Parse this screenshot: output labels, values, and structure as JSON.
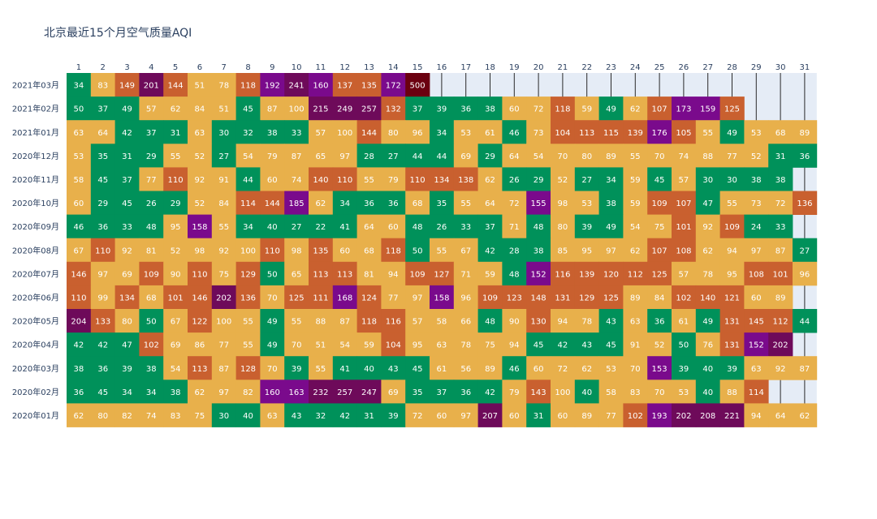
{
  "chart_data": {
    "type": "heatmap",
    "title": "北京最近15个月空气质量AQI",
    "x_categories": [
      "1",
      "2",
      "3",
      "4",
      "5",
      "6",
      "7",
      "8",
      "9",
      "10",
      "11",
      "12",
      "13",
      "14",
      "15",
      "16",
      "17",
      "18",
      "19",
      "20",
      "21",
      "22",
      "23",
      "24",
      "25",
      "26",
      "27",
      "28",
      "29",
      "30",
      "31"
    ],
    "y_categories": [
      "2021年03月",
      "2021年02月",
      "2021年01月",
      "2020年12月",
      "2020年11月",
      "2020年10月",
      "2020年09月",
      "2020年08月",
      "2020年07月",
      "2020年06月",
      "2020年05月",
      "2020年04月",
      "2020年03月",
      "2020年02月",
      "2020年01月"
    ],
    "values": [
      [
        34,
        83,
        149,
        201,
        144,
        51,
        78,
        118,
        192,
        241,
        160,
        137,
        135,
        172,
        500,
        null,
        null,
        null,
        null,
        null,
        null,
        null,
        null,
        null,
        null,
        null,
        null,
        null,
        null,
        null,
        null
      ],
      [
        50,
        37,
        49,
        57,
        62,
        84,
        51,
        45,
        87,
        100,
        215,
        249,
        257,
        132,
        37,
        39,
        36,
        38,
        60,
        72,
        118,
        59,
        49,
        62,
        107,
        173,
        159,
        125,
        null,
        null,
        null
      ],
      [
        63,
        64,
        42,
        37,
        31,
        63,
        30,
        32,
        38,
        33,
        57,
        100,
        144,
        80,
        96,
        34,
        53,
        61,
        46,
        73,
        104,
        113,
        115,
        139,
        176,
        105,
        55,
        49,
        53,
        68,
        89
      ],
      [
        53,
        35,
        31,
        29,
        55,
        52,
        27,
        54,
        79,
        87,
        65,
        97,
        28,
        27,
        44,
        44,
        69,
        29,
        64,
        54,
        70,
        80,
        89,
        55,
        70,
        74,
        88,
        77,
        52,
        31,
        36
      ],
      [
        58,
        45,
        37,
        77,
        110,
        92,
        91,
        44,
        60,
        74,
        140,
        110,
        55,
        79,
        110,
        134,
        138,
        62,
        26,
        29,
        52,
        27,
        34,
        59,
        45,
        57,
        30,
        30,
        38,
        38,
        null
      ],
      [
        60,
        29,
        45,
        26,
        29,
        52,
        84,
        114,
        144,
        185,
        62,
        34,
        36,
        36,
        68,
        35,
        55,
        64,
        72,
        155,
        98,
        53,
        38,
        59,
        109,
        107,
        47,
        55,
        73,
        72,
        136
      ],
      [
        46,
        36,
        33,
        48,
        95,
        158,
        55,
        34,
        40,
        27,
        22,
        41,
        64,
        60,
        48,
        26,
        33,
        37,
        71,
        48,
        80,
        39,
        49,
        54,
        75,
        101,
        92,
        109,
        24,
        33,
        null
      ],
      [
        67,
        110,
        92,
        81,
        52,
        98,
        92,
        100,
        110,
        98,
        135,
        60,
        68,
        118,
        50,
        55,
        67,
        42,
        28,
        38,
        85,
        95,
        97,
        62,
        107,
        108,
        62,
        94,
        97,
        87,
        27
      ],
      [
        146,
        97,
        69,
        109,
        90,
        110,
        75,
        129,
        50,
        65,
        113,
        113,
        81,
        94,
        109,
        127,
        71,
        59,
        48,
        152,
        116,
        139,
        120,
        112,
        125,
        57,
        78,
        95,
        108,
        101,
        96
      ],
      [
        110,
        99,
        134,
        68,
        101,
        146,
        202,
        136,
        70,
        125,
        111,
        168,
        124,
        77,
        97,
        158,
        96,
        109,
        123,
        148,
        131,
        129,
        125,
        89,
        84,
        102,
        140,
        121,
        60,
        89,
        null
      ],
      [
        204,
        133,
        80,
        50,
        67,
        122,
        100,
        55,
        49,
        55,
        88,
        87,
        118,
        116,
        57,
        58,
        66,
        48,
        90,
        130,
        94,
        78,
        43,
        63,
        36,
        61,
        49,
        131,
        145,
        112,
        44
      ],
      [
        42,
        42,
        47,
        102,
        69,
        86,
        77,
        55,
        49,
        70,
        51,
        54,
        59,
        104,
        95,
        63,
        78,
        75,
        94,
        45,
        42,
        43,
        45,
        91,
        52,
        50,
        76,
        131,
        152,
        202,
        null
      ],
      [
        38,
        36,
        39,
        38,
        54,
        113,
        87,
        128,
        70,
        39,
        55,
        41,
        40,
        43,
        45,
        61,
        56,
        89,
        46,
        60,
        72,
        62,
        53,
        70,
        153,
        39,
        40,
        39,
        63,
        92,
        87
      ],
      [
        36,
        45,
        34,
        34,
        38,
        62,
        97,
        82,
        160,
        163,
        232,
        257,
        247,
        69,
        35,
        37,
        36,
        42,
        79,
        143,
        100,
        40,
        58,
        83,
        70,
        53,
        40,
        88,
        114,
        null,
        null
      ],
      [
        62,
        80,
        82,
        74,
        83,
        75,
        30,
        40,
        63,
        43,
        32,
        42,
        31,
        39,
        72,
        60,
        97,
        207,
        60,
        31,
        60,
        89,
        77,
        102,
        193,
        202,
        208,
        221,
        94,
        64,
        62
      ]
    ],
    "colorscale": [
      {
        "max": 50,
        "color": "#00915a"
      },
      {
        "max": 100,
        "color": "#e8b04b"
      },
      {
        "max": 150,
        "color": "#c9602f"
      },
      {
        "max": 200,
        "color": "#7a0a8c"
      },
      {
        "max": 300,
        "color": "#6e0a5a"
      },
      {
        "max": 500,
        "color": "#6b0010"
      }
    ],
    "empty_color": "#e5ecf6",
    "grid_line_color": "#2a2a2a"
  }
}
